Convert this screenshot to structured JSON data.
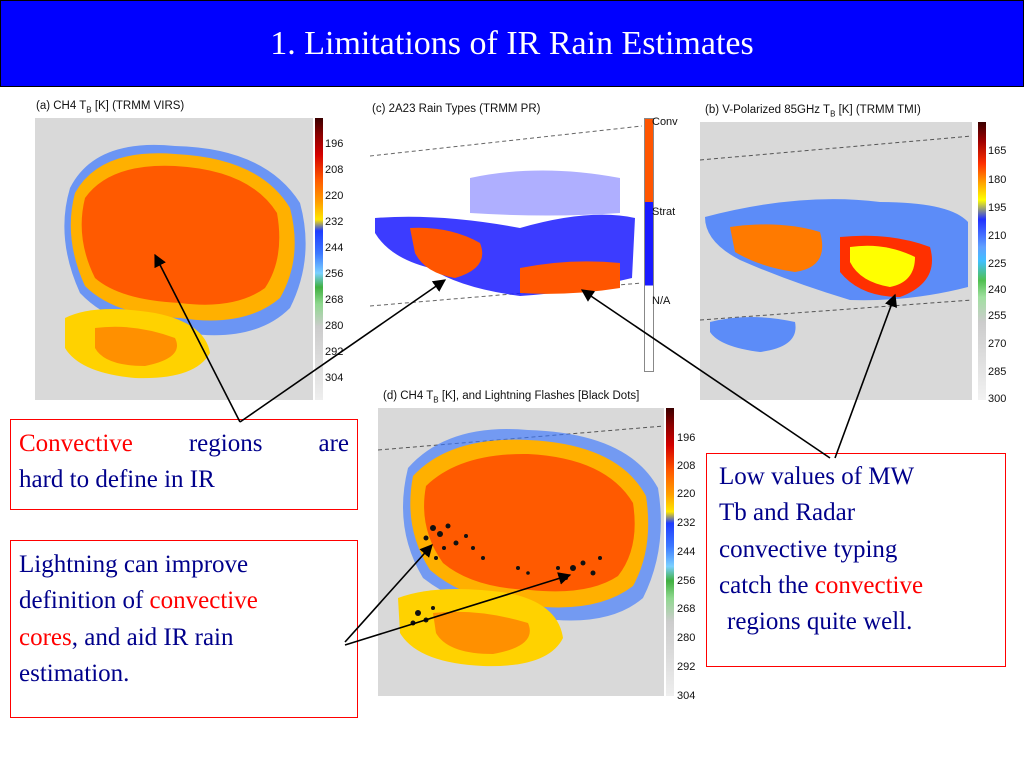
{
  "title": "1. Limitations of IR Rain Estimates",
  "panels": {
    "a": {
      "title": "(a) CH4 T",
      "sub": "B",
      "title_rest": " [K] (TRMM VIRS)",
      "ticks": [
        "196",
        "208",
        "220",
        "232",
        "244",
        "256",
        "268",
        "280",
        "292",
        "304"
      ]
    },
    "c": {
      "title": "(c) 2A23 Rain Types (TRMM PR)",
      "ticks": [
        "Conv",
        "Strat",
        "N/A"
      ]
    },
    "b": {
      "title": "(b) V-Polarized 85GHz T",
      "sub": "B",
      "title_rest": " [K] (TRMM TMI)",
      "ticks": [
        "165",
        "180",
        "195",
        "210",
        "225",
        "240",
        "255",
        "270",
        "285",
        "300"
      ]
    },
    "d": {
      "title": "(d) CH4 T",
      "sub": "B",
      "title_rest": " [K], and Lightning Flashes [Black Dots]",
      "ticks": [
        "196",
        "208",
        "220",
        "232",
        "244",
        "256",
        "268",
        "280",
        "292",
        "304"
      ]
    }
  },
  "boxes": {
    "convective": {
      "w1": "Convective",
      "w2": "regions",
      "w3": "are",
      "line2": "hard to define in  IR"
    },
    "lightning": {
      "l1": "Lightning can improve",
      "l2a": "definition of ",
      "l2b": "convective",
      "l3a": "cores",
      "l3b": ",  and  aid IR rain",
      "l4": "estimation."
    },
    "lowvalues": {
      "l1": "Low values of MW",
      "l2": "Tb and Radar",
      "l3": "convective typing",
      "l4a": "catch the ",
      "l4b": "convective",
      "l5": "regions quite well."
    }
  },
  "colors": {
    "title_bg": "#0000ff",
    "box_text": "#00008b",
    "highlight": "#ff0000"
  }
}
